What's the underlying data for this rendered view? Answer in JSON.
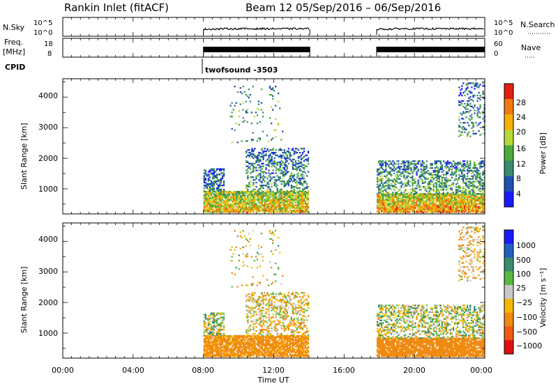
{
  "figure": {
    "title_left": "Rankin Inlet (fitACF)",
    "title_right": "Beam 12  05/Sep/2016 – 06/Sep/2016",
    "cpid_label": "CPID",
    "cpid_text": "twofsound -3503"
  },
  "nsky_panel": {
    "left_label": "N.Sky",
    "right_label": "N.Search",
    "left_ticks": [
      "10^5",
      "10^0"
    ],
    "right_ticks": [
      "10^5",
      "10^0"
    ]
  },
  "freq_panel": {
    "left_label_1": "Freq.",
    "left_label_2": "[MHz]",
    "right_label": "Nave",
    "left_ticks": [
      "18",
      "8"
    ],
    "right_ticks": [
      "60",
      "0"
    ]
  },
  "time_axis": {
    "label": "Time UT",
    "ticks": [
      "00:00",
      "04:00",
      "08:00",
      "12:00",
      "16:00",
      "20:00",
      "00:00"
    ]
  },
  "power_panel": {
    "ylabel": "Slant Range [km]",
    "yticks": [
      "4000",
      "3000",
      "2000",
      "1000"
    ],
    "colorbar_label": "Power [dB]",
    "colorbar_ticks": [
      "28",
      "24",
      "20",
      "16",
      "12",
      "8",
      "4"
    ]
  },
  "velocity_panel": {
    "ylabel": "Slant Range [km]",
    "yticks": [
      "4000",
      "3000",
      "2000",
      "1000"
    ],
    "colorbar_label": "Velocity [m s⁻¹]",
    "colorbar_ticks": [
      "1000",
      "500",
      "100",
      "25",
      "−25",
      "−100",
      "−500",
      "−1000"
    ]
  },
  "chart_data": {
    "type": "heatmap",
    "title": "Rankin Inlet (fitACF)",
    "subtitle": "Beam 12  05/Sep/2016 – 06/Sep/2016",
    "xlabel": "Time UT",
    "x_range_hours": [
      0,
      24
    ],
    "x_ticks_hours": [
      0,
      4,
      8,
      12,
      16,
      20,
      24
    ],
    "ylabel": "Slant Range [km]",
    "ylim_km": [
      180,
      4600
    ],
    "y_ticks_km": [
      1000,
      2000,
      3000,
      4000
    ],
    "operating_intervals_hours": [
      [
        8.0,
        14.05
      ],
      [
        17.85,
        24.0
      ]
    ],
    "power_colorbar": {
      "label": "Power [dB]",
      "ticks": [
        4,
        8,
        12,
        16,
        20,
        24,
        28
      ],
      "colors": [
        "#1a1aff",
        "#2050b0",
        "#3a8a6e",
        "#4aaa3a",
        "#b8d83a",
        "#f5b000",
        "#f07a10",
        "#e02010"
      ]
    },
    "velocity_colorbar": {
      "label": "Velocity [m s⁻¹]",
      "ticks": [
        -1000,
        -500,
        -100,
        -25,
        25,
        100,
        500,
        1000
      ],
      "colors": [
        "#e01010",
        "#f05a10",
        "#f08a10",
        "#f5b800",
        "#c8c8c8",
        "#5ab840",
        "#3a8a6e",
        "#2060c0",
        "#1a1aff"
      ]
    },
    "regions": [
      {
        "name": "day1-near-range",
        "t": [
          8.0,
          14.0
        ],
        "r": [
          200,
          900
        ],
        "power": 22,
        "velocity": -200,
        "density": 0.85
      },
      {
        "name": "day1-low-mid",
        "t": [
          8.0,
          9.2
        ],
        "r": [
          900,
          1650
        ],
        "power": 10,
        "velocity": 10,
        "density": 0.6
      },
      {
        "name": "day1-mid",
        "t": [
          10.4,
          14.0
        ],
        "r": [
          900,
          2300
        ],
        "power": 12,
        "velocity": -60,
        "density": 0.35
      },
      {
        "name": "day1-scatter-high",
        "t": [
          9.5,
          12.5
        ],
        "r": [
          2500,
          4400
        ],
        "power": 14,
        "velocity": -40,
        "density": 0.05
      },
      {
        "name": "day2-near-range",
        "t": [
          17.85,
          24.0
        ],
        "r": [
          200,
          800
        ],
        "power": 24,
        "velocity": -250,
        "density": 0.9
      },
      {
        "name": "day2-mid",
        "t": [
          17.85,
          24.0
        ],
        "r": [
          800,
          1900
        ],
        "power": 14,
        "velocity": 10,
        "density": 0.45
      },
      {
        "name": "day2-far",
        "t": [
          22.5,
          24.0
        ],
        "r": [
          2700,
          4500
        ],
        "power": 12,
        "velocity": -80,
        "density": 0.25
      }
    ]
  }
}
